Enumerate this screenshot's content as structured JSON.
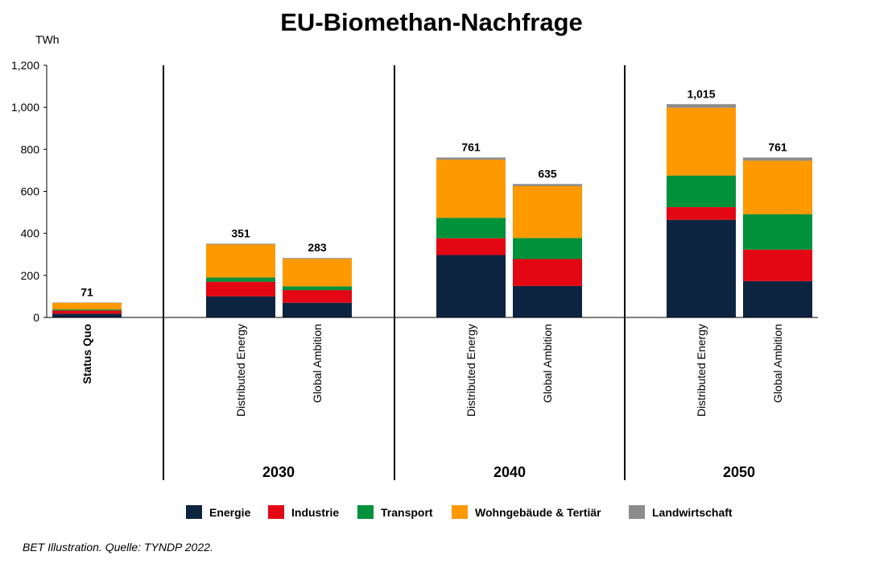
{
  "chart_data": {
    "type": "bar",
    "stacked": true,
    "title": "EU-Biomethan-Nachfrage",
    "ylabel": "TWh",
    "ylim": [
      0,
      1200
    ],
    "yticks": [
      "0",
      "200",
      "400",
      "600",
      "800",
      "1,000",
      "1,200"
    ],
    "grid": false,
    "legend_position": "bottom",
    "categories": [
      "Status Quo",
      "Distributed Energy",
      "Global Ambition",
      "Distributed Energy",
      "Global Ambition",
      "Distributed Energy",
      "Global Ambition"
    ],
    "groups": [
      {
        "label": "",
        "categories": [
          0
        ]
      },
      {
        "label": "2030",
        "categories": [
          1,
          2
        ]
      },
      {
        "label": "2040",
        "categories": [
          3,
          4
        ]
      },
      {
        "label": "2050",
        "categories": [
          5,
          6
        ]
      }
    ],
    "totals": [
      "71",
      "351",
      "283",
      "761",
      "635",
      "1,015",
      "761"
    ],
    "series": [
      {
        "name": "Energie",
        "color": "#0d2440",
        "values": [
          18,
          100,
          70,
          297,
          150,
          465,
          173
        ]
      },
      {
        "name": "Industrie",
        "color": "#e30613",
        "values": [
          15,
          70,
          60,
          80,
          128,
          60,
          150
        ]
      },
      {
        "name": "Transport",
        "color": "#00913a",
        "values": [
          5,
          20,
          18,
          97,
          100,
          150,
          168
        ]
      },
      {
        "name": "Wohngebäude & Tertiär",
        "color": "#ff9900",
        "values": [
          31,
          157,
          131,
          277,
          247,
          323,
          255
        ]
      },
      {
        "name": "Landwirtschaft",
        "color": "#8c8c8c",
        "values": [
          2,
          4,
          4,
          10,
          10,
          17,
          15
        ]
      }
    ]
  },
  "source_note": "BET Illustration. Quelle: TYNDP 2022."
}
